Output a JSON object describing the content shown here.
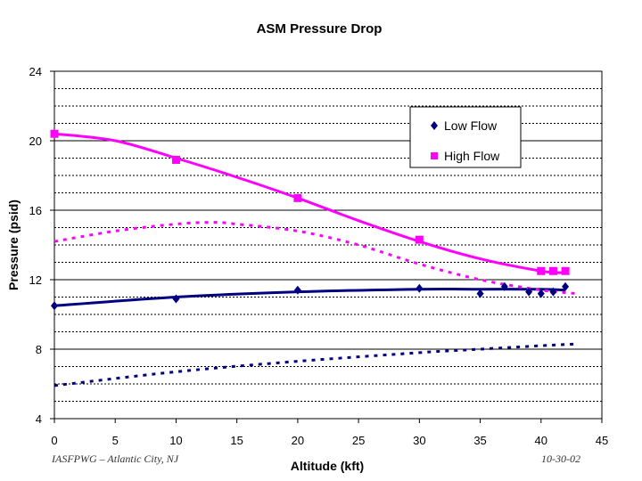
{
  "chart_data": {
    "type": "line",
    "title": "ASM Pressure Drop",
    "xlabel": "Altitude (kft)",
    "ylabel": "Pressure (psid)",
    "xlim": [
      0,
      45
    ],
    "ylim": [
      4,
      24
    ],
    "xticks": [
      0,
      5,
      10,
      15,
      20,
      25,
      30,
      35,
      40,
      45
    ],
    "yticks": [
      4,
      8,
      12,
      16,
      20,
      24
    ],
    "minor_gridlines_y": [
      5,
      6,
      7,
      9,
      10,
      11,
      13,
      14,
      15,
      17,
      18,
      19,
      21,
      22,
      23
    ],
    "legend_position": "top-right",
    "series": [
      {
        "name": "Low Flow",
        "marker": "diamond",
        "color": "#000080",
        "x": [
          0,
          10,
          20,
          30,
          35,
          37,
          39,
          40,
          41,
          42
        ],
        "y": [
          10.5,
          10.9,
          11.4,
          11.5,
          11.2,
          11.6,
          11.3,
          11.2,
          11.3,
          11.6
        ],
        "trend_solid": [
          [
            0,
            10.5
          ],
          [
            10,
            11.0
          ],
          [
            20,
            11.3
          ],
          [
            30,
            11.45
          ],
          [
            35,
            11.45
          ],
          [
            40,
            11.45
          ],
          [
            42,
            11.4
          ]
        ],
        "trend_dotted": [
          [
            0,
            5.9
          ],
          [
            10,
            6.7
          ],
          [
            20,
            7.3
          ],
          [
            30,
            7.8
          ],
          [
            35,
            8.0
          ],
          [
            40,
            8.2
          ],
          [
            43,
            8.3
          ]
        ]
      },
      {
        "name": "High Flow",
        "marker": "square",
        "color": "#ff00ff",
        "x": [
          0,
          10,
          20,
          30,
          40,
          41,
          42
        ],
        "y": [
          20.4,
          18.9,
          16.7,
          14.3,
          12.5,
          12.5,
          12.5
        ],
        "trend_solid": [
          [
            0,
            20.4
          ],
          [
            5,
            20.0
          ],
          [
            10,
            19.0
          ],
          [
            15,
            17.9
          ],
          [
            20,
            16.7
          ],
          [
            25,
            15.4
          ],
          [
            30,
            14.2
          ],
          [
            35,
            13.2
          ],
          [
            40,
            12.5
          ],
          [
            42,
            12.4
          ]
        ],
        "trend_dotted": [
          [
            0,
            14.2
          ],
          [
            5,
            14.8
          ],
          [
            10,
            15.2
          ],
          [
            13,
            15.3
          ],
          [
            15,
            15.2
          ],
          [
            20,
            14.8
          ],
          [
            25,
            14.0
          ],
          [
            30,
            12.9
          ],
          [
            35,
            12.0
          ],
          [
            40,
            11.4
          ],
          [
            43,
            11.2
          ]
        ]
      }
    ]
  },
  "footer": {
    "left": "IASFPWG – Atlantic City, NJ",
    "right": "10-30-02"
  }
}
